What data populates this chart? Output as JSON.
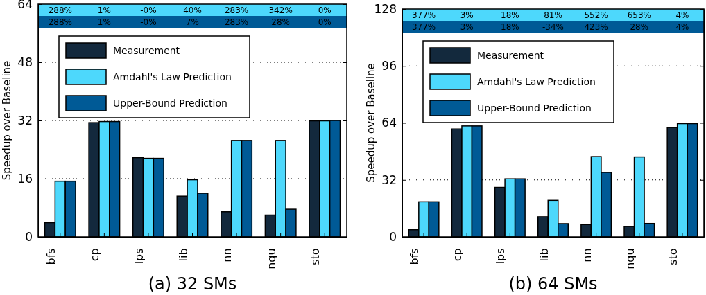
{
  "chart_data": [
    {
      "type": "bar",
      "ylabel": "Speedup over Baseline",
      "categories": [
        "bfs",
        "cp",
        "lps",
        "lib",
        "nn",
        "nqu",
        "sto"
      ],
      "series": [
        {
          "name": "Measurement",
          "color": "#13293d",
          "values": [
            3.9,
            31.4,
            21.8,
            11.2,
            6.9,
            6.0,
            31.9
          ]
        },
        {
          "name": "Amdahl's Law Prediction",
          "color": "#4dd8fc",
          "values": [
            15.3,
            31.7,
            21.6,
            15.7,
            26.5,
            26.5,
            31.9
          ]
        },
        {
          "name": "Upper-Bound Prediction",
          "color": "#005a96",
          "values": [
            15.3,
            31.7,
            21.6,
            12.0,
            26.5,
            7.6,
            32
          ]
        }
      ],
      "ylim": [
        0,
        64
      ],
      "yticks": [
        0,
        16,
        32,
        48,
        64
      ],
      "grid": "y",
      "legend": "top left",
      "annotations": [
        "(a) 32 SMs",
        "288%",
        "1%",
        "-0%",
        "40%",
        "283%",
        "342%",
        "0%",
        "288%",
        "1%",
        "-0%",
        "7%",
        "283%",
        "28%",
        "0%"
      ]
    },
    {
      "type": "bar",
      "ylabel": "Speedup over Baseline",
      "categories": [
        "bfs",
        "cp",
        "lps",
        "lib",
        "nn",
        "nqu",
        "sto"
      ],
      "series": [
        {
          "name": "Measurement",
          "color": "#13293d",
          "values": [
            4.0,
            60.6,
            27.8,
            11.3,
            6.9,
            5.8,
            61.4
          ]
        },
        {
          "name": "Amdahl's Law Prediction",
          "color": "#4dd8fc",
          "values": [
            19.7,
            62.3,
            32.6,
            20.5,
            45.1,
            44.9,
            63.6
          ]
        },
        {
          "name": "Upper-Bound Prediction",
          "color": "#005a96",
          "values": [
            19.7,
            62.3,
            32.6,
            7.4,
            36.2,
            7.5,
            63.6
          ]
        }
      ],
      "ylim": [
        0,
        128
      ],
      "yticks": [
        0,
        32,
        64,
        96,
        128
      ],
      "grid": "y",
      "legend": "top left",
      "annotations": [
        "(b) 64 SMs",
        "377%",
        "3%",
        "18%",
        "81%",
        "552%",
        "653%",
        "4%",
        "377%",
        "3%",
        "18%",
        "-34%",
        "423%",
        "28%",
        "4%"
      ]
    }
  ]
}
